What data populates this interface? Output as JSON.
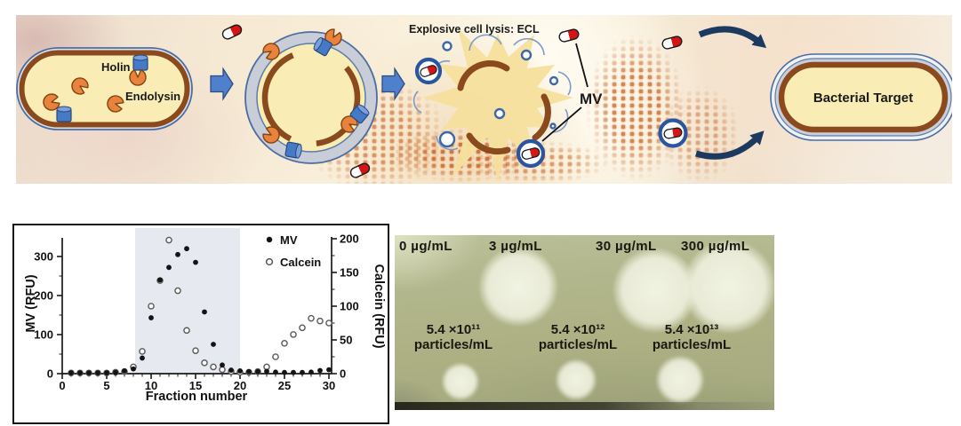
{
  "colors": {
    "cell_fill": "#f9ecb4",
    "membrane_brown": "#8a4a1e",
    "outer_membrane_blue": "#4c6da2",
    "holin_blue": "#4679c6",
    "endolysin_orange": "#e8823c",
    "capsule_red": "#d51414",
    "navy_arrow": "#1c3a60",
    "starburst_yellow": "#f6e09e",
    "plate_background": "#adb184",
    "chart_band": "#e7e9f1"
  },
  "banner": {
    "holin_label": "Holin",
    "endolysin_label": "Endolysin",
    "ecl_label": "Explosive cell lysis: ECL",
    "mv_label": "MV",
    "target_label": "Bacterial Target"
  },
  "chart_data": {
    "type": "scatter",
    "xlabel": "Fraction number",
    "ylabel_left": "MV (RFU)",
    "ylabel_right": "Calcein (RFU)",
    "x_range": [
      0,
      30.5
    ],
    "left_range": [
      0,
      350
    ],
    "right_range": [
      0,
      200
    ],
    "x_ticks": [
      0,
      5,
      10,
      15,
      20,
      25,
      30
    ],
    "left_ticks": [
      0,
      100,
      200,
      300
    ],
    "right_ticks": [
      0,
      50,
      100,
      150,
      200
    ],
    "shaded_region": [
      8.2,
      20
    ],
    "band_color": "#e7e9f1",
    "grid": false,
    "legend_position": "upper right",
    "x": [
      1,
      2,
      3,
      4,
      5,
      6,
      7,
      8,
      9,
      10,
      11,
      12,
      13,
      14,
      15,
      16,
      17,
      18,
      19,
      20,
      21,
      22,
      23,
      24,
      25,
      26,
      27,
      28,
      29,
      30
    ],
    "series": [
      {
        "name": "MV",
        "axis": "left",
        "marker": "filled-circle",
        "values": [
          2,
          2,
          2,
          2,
          2,
          3,
          7,
          12,
          40,
          143,
          240,
          272,
          305,
          320,
          285,
          158,
          75,
          22,
          9,
          7,
          5,
          5,
          6,
          4,
          3,
          3,
          3,
          4,
          8,
          10
        ]
      },
      {
        "name": "Calcein",
        "axis": "right",
        "marker": "open-circle",
        "values": [
          1,
          1,
          1,
          1,
          1,
          2,
          3,
          10,
          33,
          100,
          138,
          198,
          123,
          64,
          34,
          16,
          10,
          6,
          3,
          2,
          2,
          3,
          10,
          25,
          45,
          58,
          68,
          82,
          78,
          75
        ]
      }
    ]
  },
  "plate": {
    "row1_labels": [
      "0 µg/mL",
      "3 µg/mL",
      "30 µg/mL",
      "300 µg/mL"
    ],
    "row2_labels": [
      {
        "line1": "5.4 ×10¹¹",
        "line2": "particles/mL"
      },
      {
        "line1": "5.4 ×10¹²",
        "line2": "particles/mL"
      },
      {
        "line1": "5.4 ×10¹³",
        "line2": "particles/mL"
      }
    ]
  }
}
